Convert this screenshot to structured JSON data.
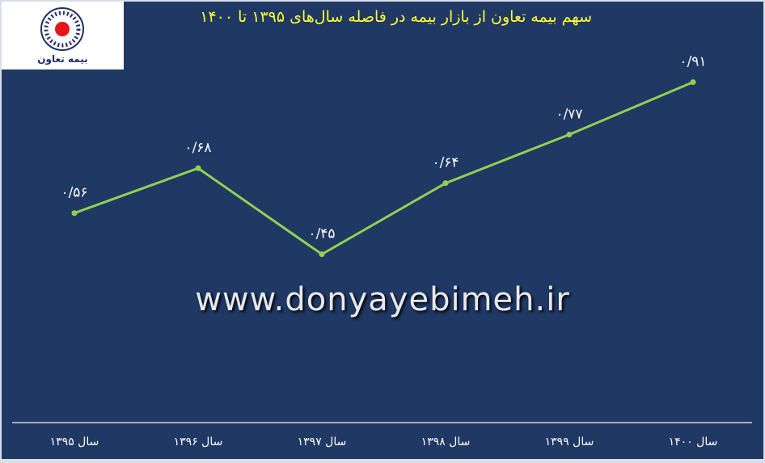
{
  "title": "سهم بیمه تعاون از بازار بیمه در فاصله سال‌های ۱۳۹۵ تا ۱۴۰۰",
  "logo": {
    "text": "بیمه تعاون"
  },
  "watermark": "www.donyayebimeh.ir",
  "colors": {
    "background": "#1f3864",
    "line": "#92d050",
    "title": "#ffff33"
  },
  "chart_data": {
    "type": "line",
    "title": "سهم بیمه تعاون از بازار بیمه در فاصله سال‌های ۱۳۹۵ تا ۱۴۰۰",
    "categories": [
      "سال ۱۳۹۵",
      "سال ۱۳۹۶",
      "سال ۱۳۹۷",
      "سال ۱۳۹۸",
      "سال ۱۳۹۹",
      "سال ۱۴۰۰"
    ],
    "values": [
      0.56,
      0.68,
      0.45,
      0.64,
      0.77,
      0.91
    ],
    "data_labels": [
      "۰/۵۶",
      "۰/۶۸",
      "۰/۴۵",
      "۰/۶۴",
      "۰/۷۷",
      "۰/۹۱"
    ],
    "ylim": [
      0,
      1.13
    ],
    "grid": false,
    "legend": "none"
  }
}
